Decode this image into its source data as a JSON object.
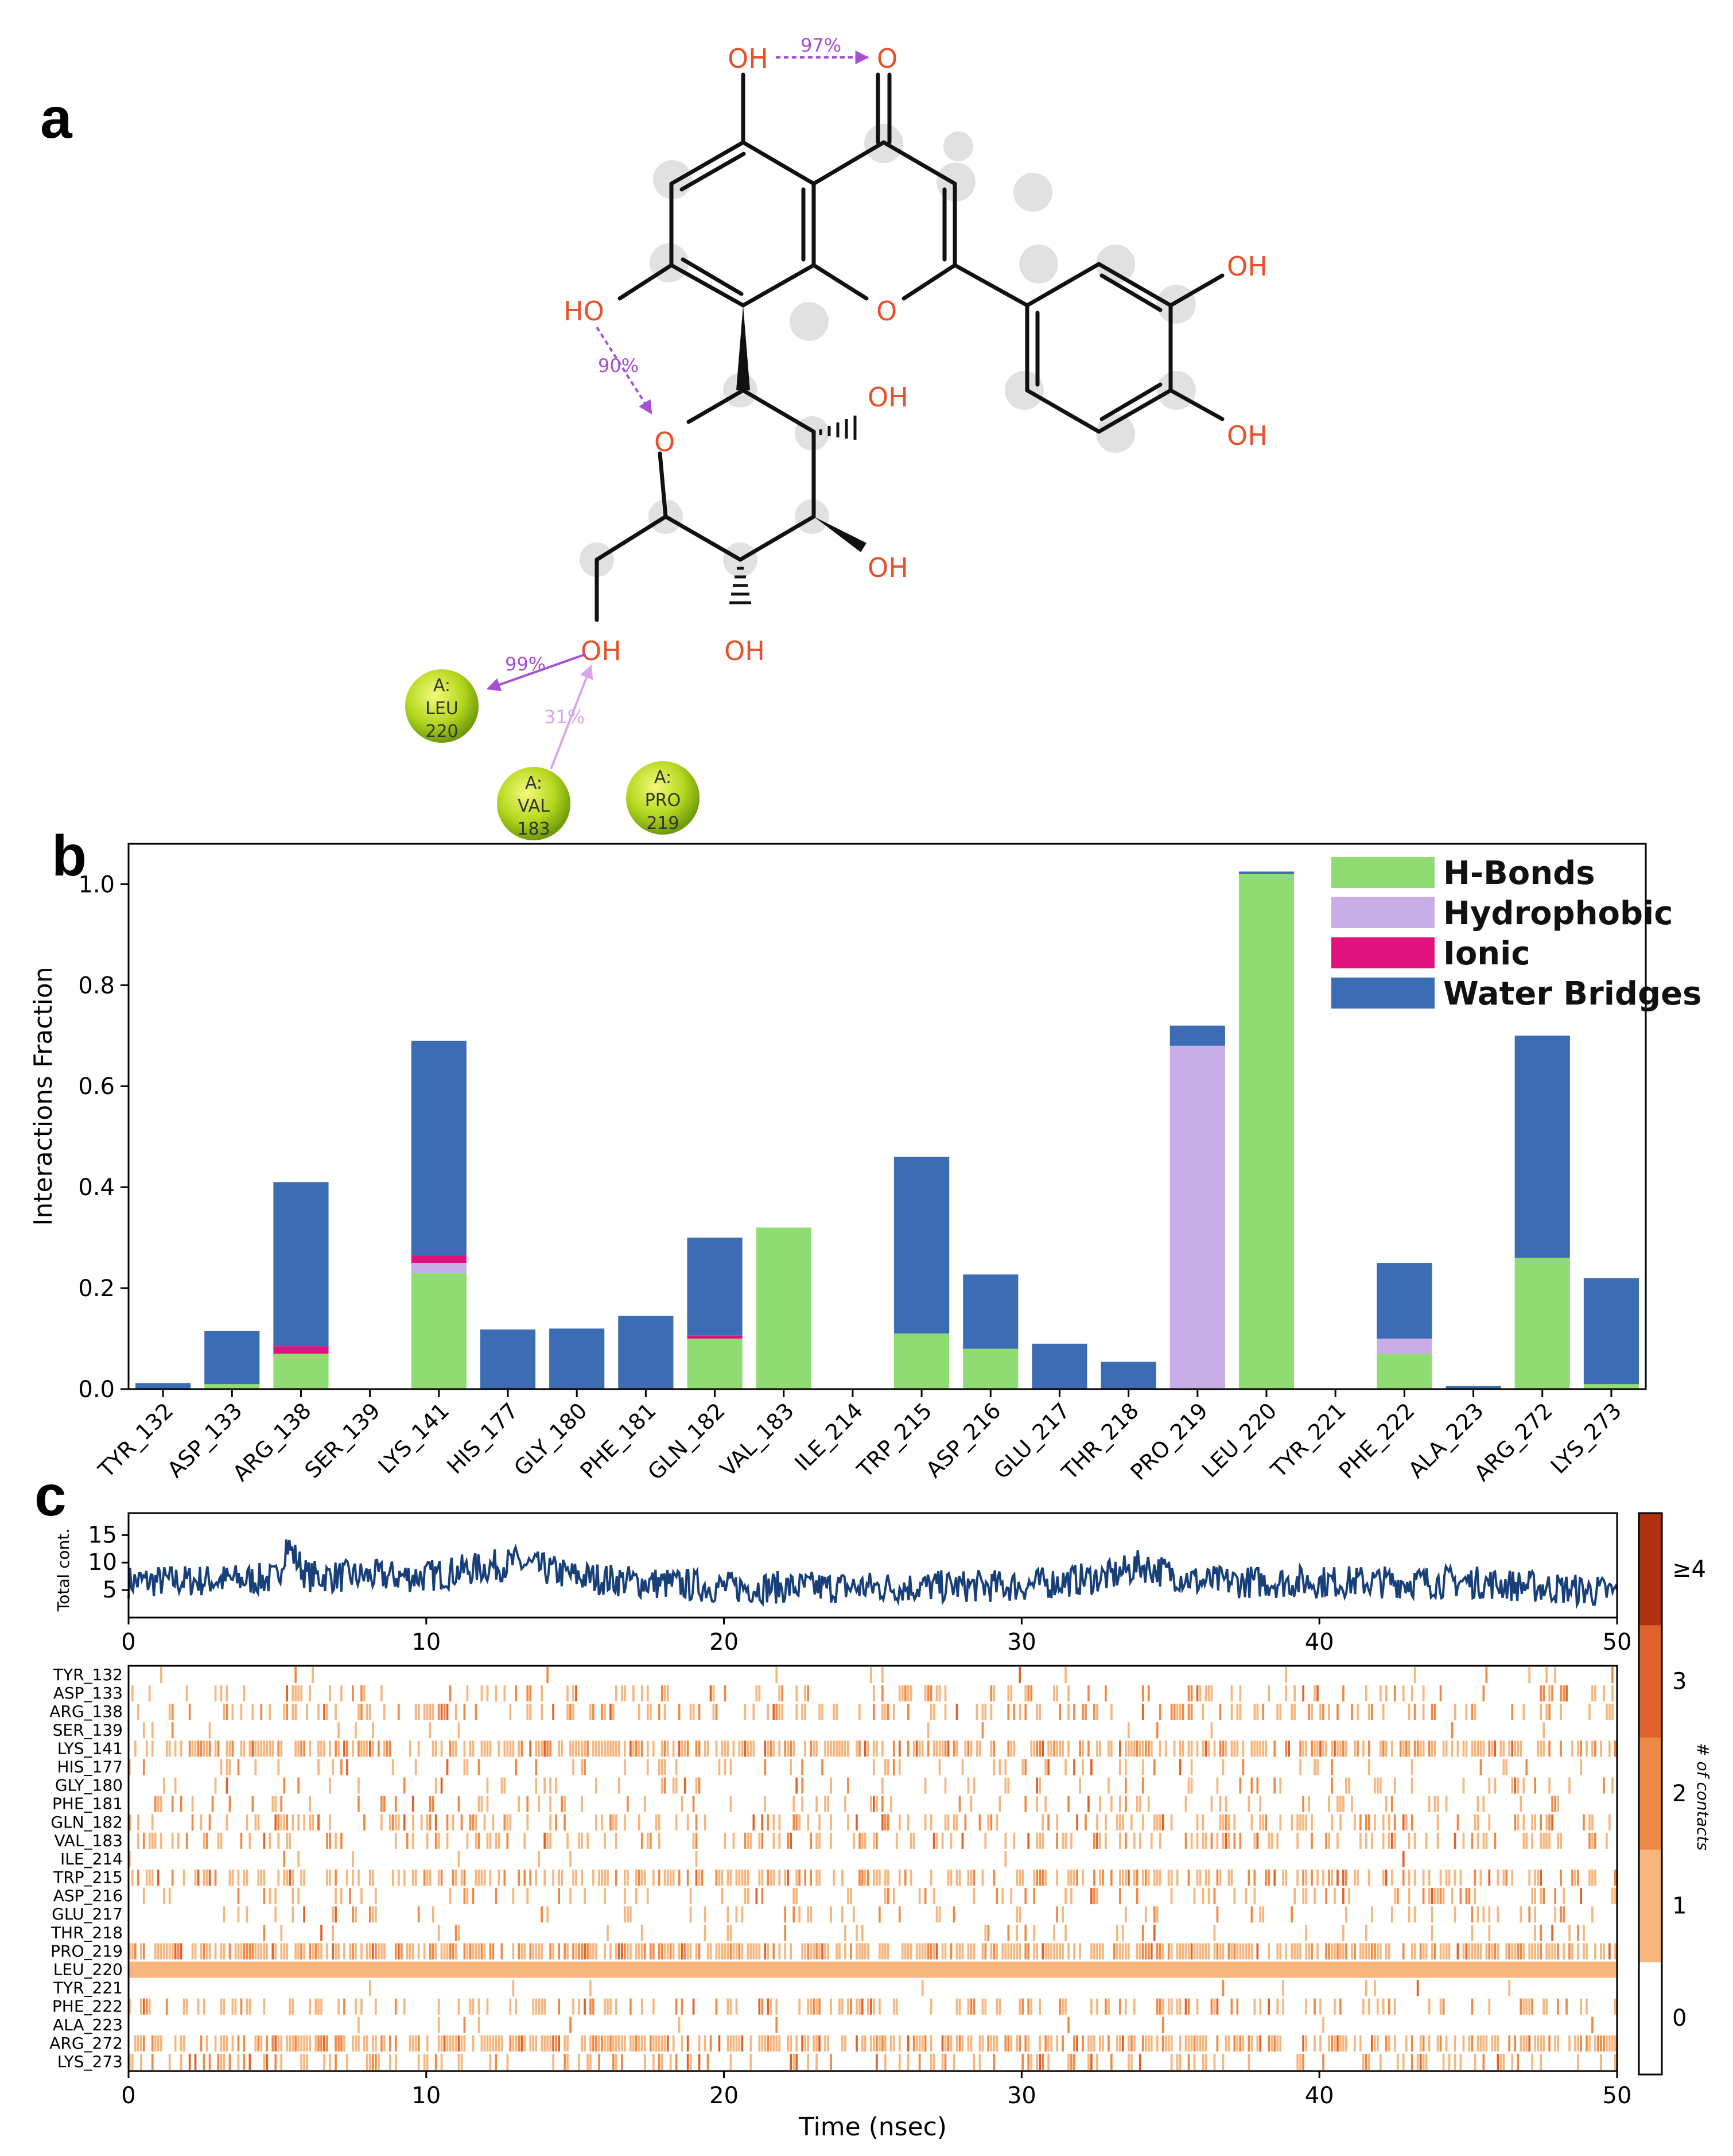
{
  "panel_labels": {
    "a": "a",
    "b": "b",
    "c": "c"
  },
  "molecule": {
    "atom_labels": [
      "OH",
      "O",
      "OH",
      "OH",
      "HO",
      "O",
      "O",
      "OH",
      "OH",
      "OH",
      "OH"
    ],
    "interactions": [
      {
        "label": "97%",
        "color": "#a64ed4"
      },
      {
        "label": "90%",
        "color": "#a64ed4"
      },
      {
        "label": "99%",
        "color": "#a64ed4"
      },
      {
        "label": "31%",
        "color": "#d9a6ee"
      }
    ],
    "residues": [
      {
        "chain": "A:",
        "name": "LEU",
        "num": "220"
      },
      {
        "chain": "A:",
        "name": "VAL",
        "num": "183"
      },
      {
        "chain": "A:",
        "name": "PRO",
        "num": "219"
      }
    ]
  },
  "chart_data": [
    {
      "type": "bar",
      "stacked": true,
      "ylabel": "Interactions Fraction",
      "ylim": [
        0,
        1.08
      ],
      "yticks": [
        "0.0",
        "0.2",
        "0.4",
        "0.6",
        "0.8",
        "1.0"
      ],
      "legend_position": "top-right",
      "categories": [
        "TYR_132",
        "ASP_133",
        "ARG_138",
        "SER_139",
        "LYS_141",
        "HIS_177",
        "GLY_180",
        "PHE_181",
        "GLN_182",
        "VAL_183",
        "ILE_214",
        "TRP_215",
        "ASP_216",
        "GLU_217",
        "THR_218",
        "PRO_219",
        "LEU_220",
        "TYR_221",
        "PHE_222",
        "ALA_223",
        "ARG_272",
        "LYS_273"
      ],
      "series": [
        {
          "name": "H-Bonds",
          "color": "#8fdd72",
          "values": [
            0,
            0.01,
            0.07,
            0,
            0.23,
            0,
            0,
            0,
            0.1,
            0.32,
            0,
            0.11,
            0.08,
            0,
            0,
            0,
            1.02,
            0,
            0.07,
            0,
            0.26,
            0.01
          ]
        },
        {
          "name": "Hydrophobic",
          "color": "#c8aee6",
          "values": [
            0,
            0,
            0,
            0,
            0.02,
            0,
            0,
            0,
            0,
            0,
            0,
            0,
            0,
            0,
            0,
            0.68,
            0,
            0,
            0.03,
            0,
            0,
            0
          ]
        },
        {
          "name": "Ionic",
          "color": "#e0137e",
          "values": [
            0,
            0,
            0.015,
            0,
            0.015,
            0,
            0,
            0,
            0.006,
            0,
            0,
            0,
            0,
            0,
            0,
            0,
            0,
            0,
            0,
            0,
            0,
            0
          ]
        },
        {
          "name": "Water Bridges",
          "color": "#3b6cb4",
          "values": [
            0.012,
            0.105,
            0.325,
            0,
            0.425,
            0.118,
            0.12,
            0.145,
            0.194,
            0,
            0,
            0.35,
            0.147,
            0.09,
            0.054,
            0.04,
            0.005,
            0,
            0.15,
            0.006,
            0.44,
            0.21
          ]
        }
      ]
    },
    {
      "type": "line",
      "ylabel": "Total cont.",
      "yticks": [
        "5",
        "10",
        "15"
      ],
      "ylim": [
        0,
        19
      ],
      "xlim": [
        0,
        50
      ],
      "xticks": [
        "0",
        "10",
        "20",
        "30",
        "40",
        "50"
      ],
      "color": "#173f79",
      "mean_profile": {
        "x": [
          0,
          5,
          5.3,
          6,
          10,
          13,
          15,
          17,
          20,
          25,
          30,
          33,
          34,
          36,
          40,
          45,
          50
        ],
        "y": [
          6.5,
          7,
          13.5,
          7.5,
          7.5,
          10,
          7.5,
          6.5,
          5.5,
          5.5,
          5.8,
          7.5,
          9.5,
          6.5,
          6.5,
          6.5,
          4.5
        ]
      }
    },
    {
      "type": "heatmap",
      "xlabel": "Time (nsec)",
      "xlim": [
        0,
        50
      ],
      "xticks": [
        "0",
        "10",
        "20",
        "30",
        "40",
        "50"
      ],
      "rows": [
        "TYR_132",
        "ASP_133",
        "ARG_138",
        "SER_139",
        "LYS_141",
        "HIS_177",
        "GLY_180",
        "PHE_181",
        "GLN_182",
        "VAL_183",
        "ILE_214",
        "TRP_215",
        "ASP_216",
        "GLU_217",
        "THR_218",
        "PRO_219",
        "LEU_220",
        "TYR_221",
        "PHE_222",
        "ALA_223",
        "ARG_272",
        "LYS_273"
      ],
      "row_density": [
        0.04,
        0.22,
        0.32,
        0.02,
        0.62,
        0.15,
        0.14,
        0.17,
        0.3,
        0.3,
        0.01,
        0.46,
        0.2,
        0.12,
        0.08,
        0.72,
        1.0,
        0.01,
        0.3,
        0.02,
        0.62,
        0.28
      ],
      "colorbar_label": "# of contacts",
      "colorbar_ticks": [
        "0",
        "1",
        "2",
        "3",
        "≥4"
      ],
      "colorbar_colors": [
        "#ffffff",
        "#f6b67e",
        "#ef8a46",
        "#e0622b",
        "#b0300f"
      ]
    }
  ]
}
